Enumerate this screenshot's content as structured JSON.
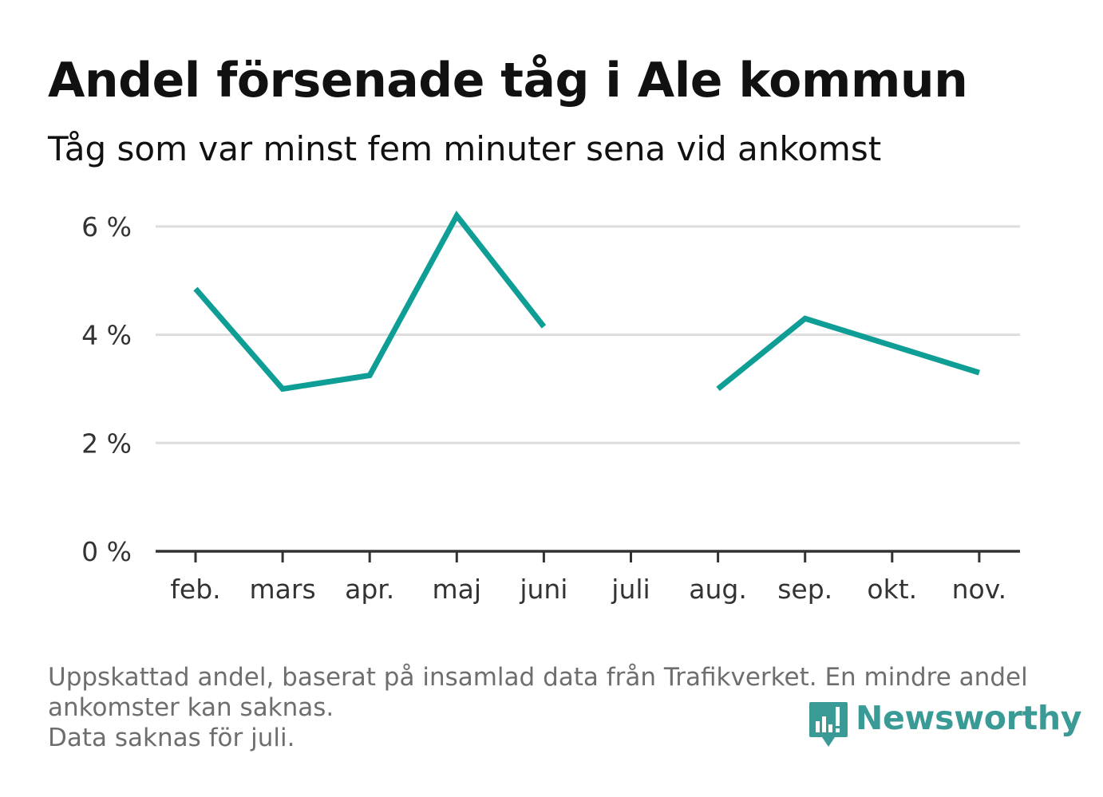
{
  "header": {
    "title": "Andel försenade tåg i Ale kommun",
    "subtitle": "Tåg som var minst fem minuter sena vid ankomst"
  },
  "footnote": {
    "line1": "Uppskattad andel, baserat på insamlad data från Trafikverket. En mindre andel",
    "line2": "ankomster kan saknas.",
    "line3": "Data saknas för juli."
  },
  "brand": {
    "name": "Newsworthy",
    "logo_icon": "newsworthy-logo-icon",
    "color": "#3a9a96"
  },
  "chart_data": {
    "type": "line",
    "categories": [
      "feb.",
      "mars",
      "apr.",
      "maj",
      "juni",
      "juli",
      "aug.",
      "sep.",
      "okt.",
      "nov."
    ],
    "series": [
      {
        "values": [
          4.85,
          3.0,
          3.25,
          6.2,
          4.15,
          null,
          3.0,
          4.3,
          3.8,
          3.3
        ],
        "color": "#0f9e96"
      }
    ],
    "y_ticks": [
      {
        "value": 0,
        "label": "0 %"
      },
      {
        "value": 2,
        "label": "2 %"
      },
      {
        "value": 4,
        "label": "4 %"
      },
      {
        "value": 6,
        "label": "6 %"
      }
    ],
    "ylim": [
      0,
      6.5
    ],
    "grid": true,
    "legend": "none",
    "gridline_color": "#dddddd",
    "axis_color": "#333333"
  }
}
